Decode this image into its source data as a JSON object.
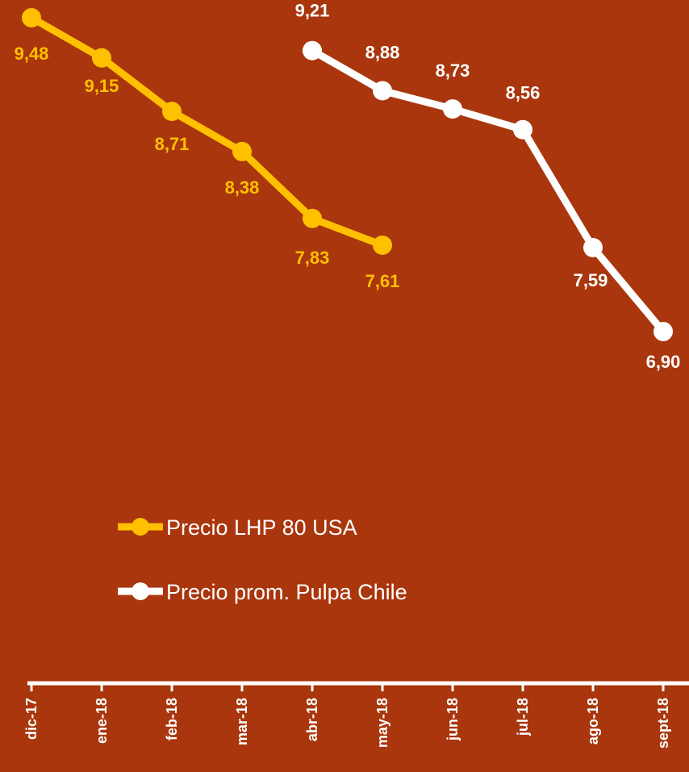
{
  "chart_data": {
    "type": "line",
    "categories": [
      "dic-17",
      "ene-18",
      "feb-18",
      "mar-18",
      "abr-18",
      "may-18",
      "jun-18",
      "jul-18",
      "ago-18",
      "sept-18"
    ],
    "series": [
      {
        "name": "Precio LHP 80 USA",
        "color": "#FFC000",
        "values": [
          9.48,
          9.15,
          8.71,
          8.38,
          7.83,
          7.61,
          null,
          null,
          null,
          null
        ],
        "labels": [
          "9,48",
          "9,15",
          "8,71",
          "8,38",
          "7,83",
          "7,61",
          null,
          null,
          null,
          null
        ]
      },
      {
        "name": "Precio prom. Pulpa Chile",
        "color": "#FFFFFF",
        "values": [
          null,
          null,
          null,
          null,
          9.21,
          8.88,
          8.73,
          8.56,
          7.59,
          6.9
        ],
        "labels": [
          null,
          null,
          null,
          null,
          "9,21",
          "8,88",
          "8,73",
          "8,56",
          "7,59",
          "6,90"
        ]
      }
    ],
    "title": "",
    "xlabel": "",
    "ylabel": "",
    "ylim": [
      5.0,
      9.6
    ],
    "grid": false,
    "legend_position": "center"
  }
}
